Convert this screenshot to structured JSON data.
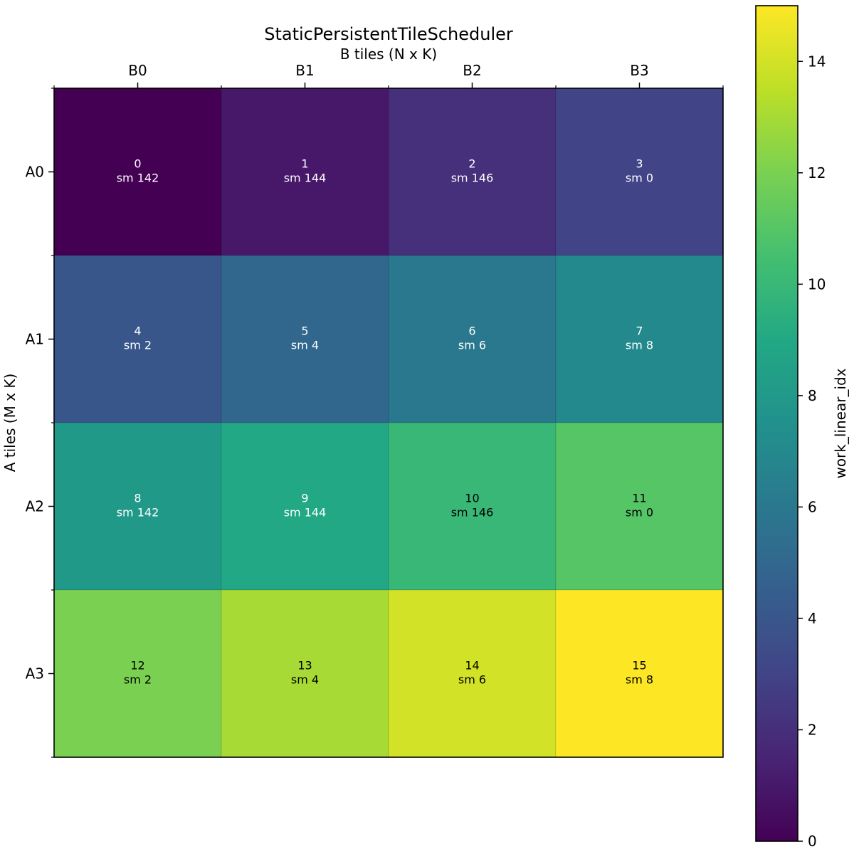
{
  "chart_data": {
    "type": "heatmap",
    "title": "StaticPersistentTileScheduler",
    "xlabel": "B tiles (N x K)",
    "ylabel": "A tiles (M x K)",
    "x_categories": [
      "B0",
      "B1",
      "B2",
      "B3"
    ],
    "y_categories": [
      "A0",
      "A1",
      "A2",
      "A3"
    ],
    "values": [
      [
        0,
        1,
        2,
        3
      ],
      [
        4,
        5,
        6,
        7
      ],
      [
        8,
        9,
        10,
        11
      ],
      [
        12,
        13,
        14,
        15
      ]
    ],
    "cell_labels": [
      [
        [
          "0",
          "sm 142"
        ],
        [
          "1",
          "sm 144"
        ],
        [
          "2",
          "sm 146"
        ],
        [
          "3",
          "sm 0"
        ]
      ],
      [
        [
          "4",
          "sm 2"
        ],
        [
          "5",
          "sm 4"
        ],
        [
          "6",
          "sm 6"
        ],
        [
          "7",
          "sm 8"
        ]
      ],
      [
        [
          "8",
          "sm 142"
        ],
        [
          "9",
          "sm 144"
        ],
        [
          "10",
          "sm 146"
        ],
        [
          "11",
          "sm 0"
        ]
      ],
      [
        [
          "12",
          "sm 2"
        ],
        [
          "13",
          "sm 4"
        ],
        [
          "14",
          "sm 6"
        ],
        [
          "15",
          "sm 8"
        ]
      ]
    ],
    "colormap": "viridis",
    "colorbar": {
      "label": "work_linear_idx",
      "range": [
        0,
        15
      ],
      "ticks": [
        0,
        2,
        4,
        6,
        8,
        10,
        12,
        14
      ]
    }
  }
}
